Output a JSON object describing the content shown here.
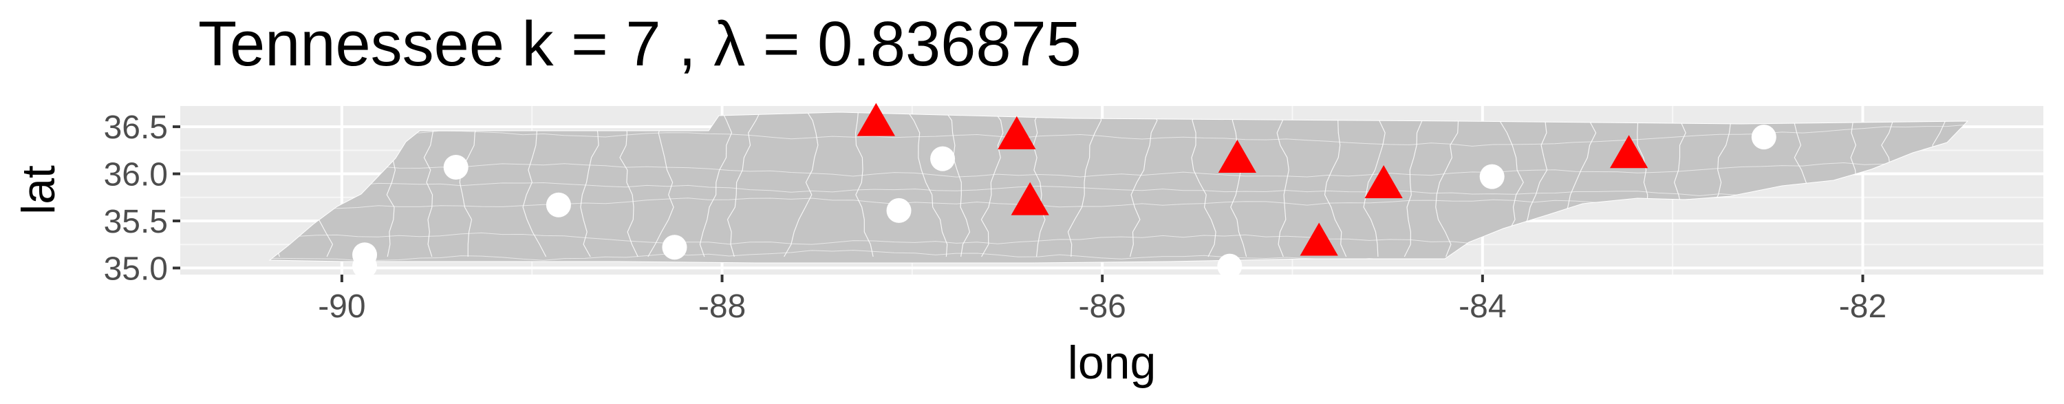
{
  "chart_data": {
    "type": "scatter",
    "title": "Tennessee  k =  7 ,  λ  =  0.836875",
    "xlabel": "long",
    "ylabel": "lat",
    "xlim": [
      -90.85,
      -81.05
    ],
    "ylim": [
      34.93,
      36.72
    ],
    "x_ticks": [
      -90,
      -88,
      -86,
      -84,
      -82
    ],
    "x_tick_labels": [
      "-90",
      "-88",
      "-86",
      "-84",
      "-82"
    ],
    "y_ticks": [
      35.0,
      35.5,
      36.0,
      36.5
    ],
    "y_tick_labels": [
      "35.0",
      "35.5",
      "36.0",
      "36.5"
    ],
    "grid": true,
    "legend": "none",
    "background_map": "Tennessee county/tract boundaries (grey fill, white borders)",
    "colors": {
      "panel": "#EBEBEB",
      "grid_major": "#FFFFFF",
      "map_fill": "#C4C4C4",
      "map_border": "#FFFFFF",
      "center_marker": "#FF0000",
      "point_marker": "#FFFFFF",
      "tick_text": "#4D4D4D"
    },
    "series": [
      {
        "marker": "triangle",
        "color": "#FF0000",
        "points": [
          {
            "x": -87.19,
            "y": 36.55
          },
          {
            "x": -86.45,
            "y": 36.41
          },
          {
            "x": -86.38,
            "y": 35.71
          },
          {
            "x": -85.29,
            "y": 36.16
          },
          {
            "x": -84.86,
            "y": 35.28
          },
          {
            "x": -84.52,
            "y": 35.89
          },
          {
            "x": -83.23,
            "y": 36.21
          }
        ]
      },
      {
        "marker": "circle",
        "color": "#FFFFFF",
        "points": [
          {
            "x": -89.88,
            "y": 35.02
          },
          {
            "x": -89.88,
            "y": 35.14
          },
          {
            "x": -89.4,
            "y": 36.07
          },
          {
            "x": -88.86,
            "y": 35.67
          },
          {
            "x": -88.25,
            "y": 35.22
          },
          {
            "x": -87.07,
            "y": 35.61
          },
          {
            "x": -86.84,
            "y": 36.16
          },
          {
            "x": -85.33,
            "y": 35.02
          },
          {
            "x": -83.95,
            "y": 35.97
          },
          {
            "x": -82.52,
            "y": 36.39
          }
        ]
      }
    ]
  }
}
